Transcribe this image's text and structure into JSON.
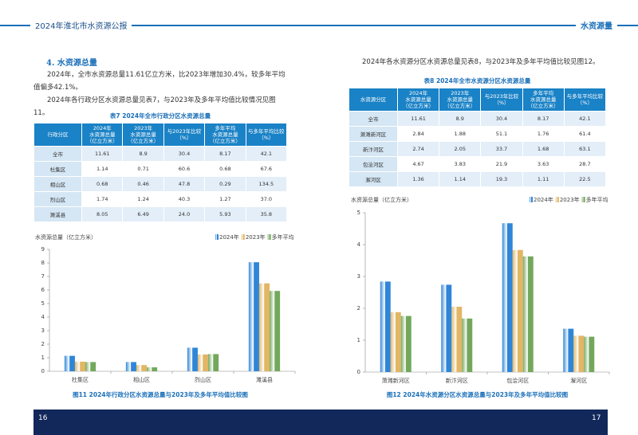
{
  "header": {
    "title": "2024年淮北市水资源公报",
    "section": "水资源量"
  },
  "pages": [
    {
      "heading": "4. 水资源总量",
      "paragraphs": [
        "2024年，全市水资源总量11.61亿立方米，比2023年增加30.4%，较多年平均值偏多42.1%。",
        "2024年各行政分区水资源总量见表7，与2023年及多年平均值比较情况见图11。"
      ],
      "table": {
        "caption": "表7  2024年全市行政分区水资源总量",
        "columns": [
          [
            "行政分区"
          ],
          [
            "2024年",
            "水资源总量",
            "（亿立方米）"
          ],
          [
            "2023年",
            "水资源总量",
            "（亿立方米）"
          ],
          [
            "与2023年比较",
            "（%）"
          ],
          [
            "多年平均",
            "水资源总量",
            "（亿立方米）"
          ],
          [
            "与多年平均比较",
            "（%）"
          ]
        ],
        "rows": [
          [
            "全市",
            "11.61",
            "8.9",
            "30.4",
            "8.17",
            "42.1"
          ],
          [
            "杜集区",
            "1.14",
            "0.71",
            "60.6",
            "0.68",
            "67.6"
          ],
          [
            "相山区",
            "0.68",
            "0.46",
            "47.8",
            "0.29",
            "134.5"
          ],
          [
            "烈山区",
            "1.74",
            "1.24",
            "40.3",
            "1.27",
            "37.0"
          ],
          [
            "濉溪县",
            "8.05",
            "6.49",
            "24.0",
            "5.93",
            "35.8"
          ]
        ]
      },
      "figure_caption": "图11  2024年行政分区水资源总量与2023年及多年平均值比较图",
      "page_number": "16"
    },
    {
      "paragraphs": [
        "2024年各水资源分区水资源总量见表8，与2023年及多年平均值比较见图12。"
      ],
      "table": {
        "caption": "表8  2024年全市水资源分区水资源总量",
        "columns": [
          [
            "水资源分区"
          ],
          [
            "2024年",
            "水资源总量",
            "（亿立方米）"
          ],
          [
            "2023年",
            "水资源总量",
            "（亿立方米）"
          ],
          [
            "与2023年比较",
            "（%）"
          ],
          [
            "多年平均",
            "水资源总量",
            "（亿立方米）"
          ],
          [
            "与多年平均比较",
            "（%）"
          ]
        ],
        "rows": [
          [
            "全市",
            "11.61",
            "8.9",
            "30.4",
            "8.17",
            "42.1"
          ],
          [
            "萧濉新河区",
            "2.84",
            "1.88",
            "51.1",
            "1.76",
            "61.4"
          ],
          [
            "新汴河区",
            "2.74",
            "2.05",
            "33.7",
            "1.68",
            "63.1"
          ],
          [
            "包浍河区",
            "4.67",
            "3.83",
            "21.9",
            "3.63",
            "28.7"
          ],
          [
            "澥河区",
            "1.36",
            "1.14",
            "19.3",
            "1.11",
            "22.5"
          ]
        ]
      },
      "figure_caption": "图12  2024年水资源分区水资源总量与2023年及多年平均值比较图",
      "page_number": "17"
    }
  ],
  "chart_data": [
    {
      "type": "bar",
      "y_label": "水资源总量（亿立方米）",
      "categories": [
        "杜集区",
        "相山区",
        "烈山区",
        "濉溪县"
      ],
      "series": [
        {
          "name": "2024年",
          "color": "#2f86d8",
          "values": [
            1.14,
            0.68,
            1.74,
            8.05
          ]
        },
        {
          "name": "2023年",
          "color": "#e2b665",
          "values": [
            0.71,
            0.46,
            1.24,
            6.49
          ]
        },
        {
          "name": "多年平均",
          "color": "#73a85c",
          "values": [
            0.68,
            0.29,
            1.27,
            5.93
          ]
        }
      ],
      "ylim": [
        0,
        9
      ],
      "yticks": [
        0,
        1,
        2,
        3,
        4,
        5,
        6,
        7,
        8,
        9
      ]
    },
    {
      "type": "bar",
      "y_label": "水资源总量（亿立方米）",
      "categories": [
        "萧濉新河区",
        "新汴河区",
        "包浍河区",
        "澥河区"
      ],
      "series": [
        {
          "name": "2024年",
          "color": "#2f86d8",
          "values": [
            2.84,
            2.74,
            4.67,
            1.36
          ]
        },
        {
          "name": "2023年",
          "color": "#e2b665",
          "values": [
            1.88,
            2.05,
            3.83,
            1.14
          ]
        },
        {
          "name": "多年平均",
          "color": "#73a85c",
          "values": [
            1.76,
            1.68,
            3.63,
            1.11
          ]
        }
      ],
      "ylim": [
        0,
        5
      ],
      "yticks": [
        0,
        1,
        2,
        3,
        4,
        5
      ]
    }
  ]
}
